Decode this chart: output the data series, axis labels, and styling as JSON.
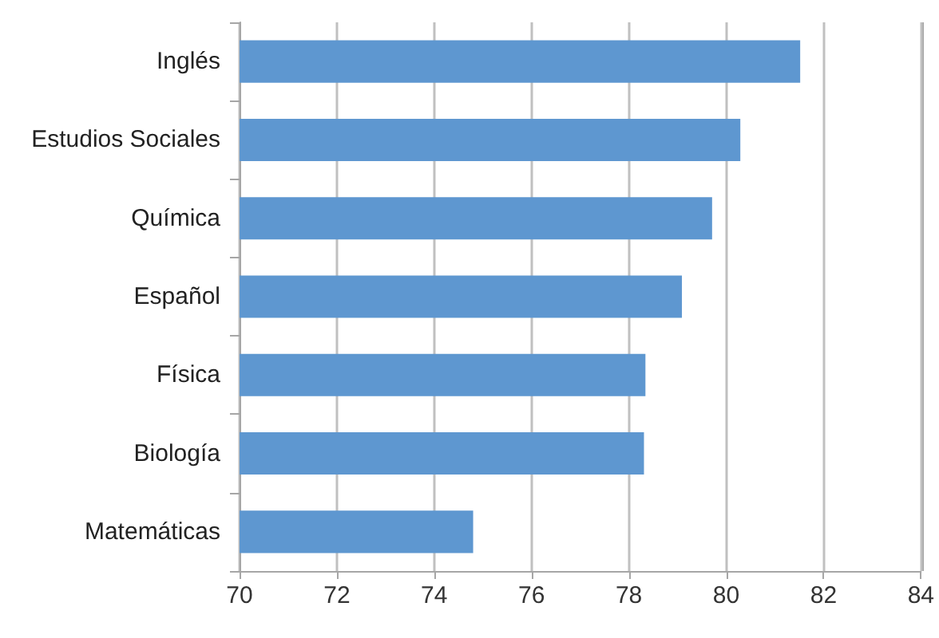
{
  "chart_data": {
    "type": "bar",
    "orientation": "horizontal",
    "categories": [
      "Inglés",
      "Estudios Sociales",
      "Química",
      "Español",
      "Física",
      "Biología",
      "Matemáticas"
    ],
    "values": [
      81.52,
      80.29,
      79.71,
      79.09,
      78.34,
      78.31,
      74.8
    ],
    "color": "#5e97d0",
    "xlim": [
      70,
      84
    ],
    "xticks": [
      70,
      72,
      74,
      76,
      78,
      80,
      82,
      84
    ],
    "grid": "x"
  }
}
